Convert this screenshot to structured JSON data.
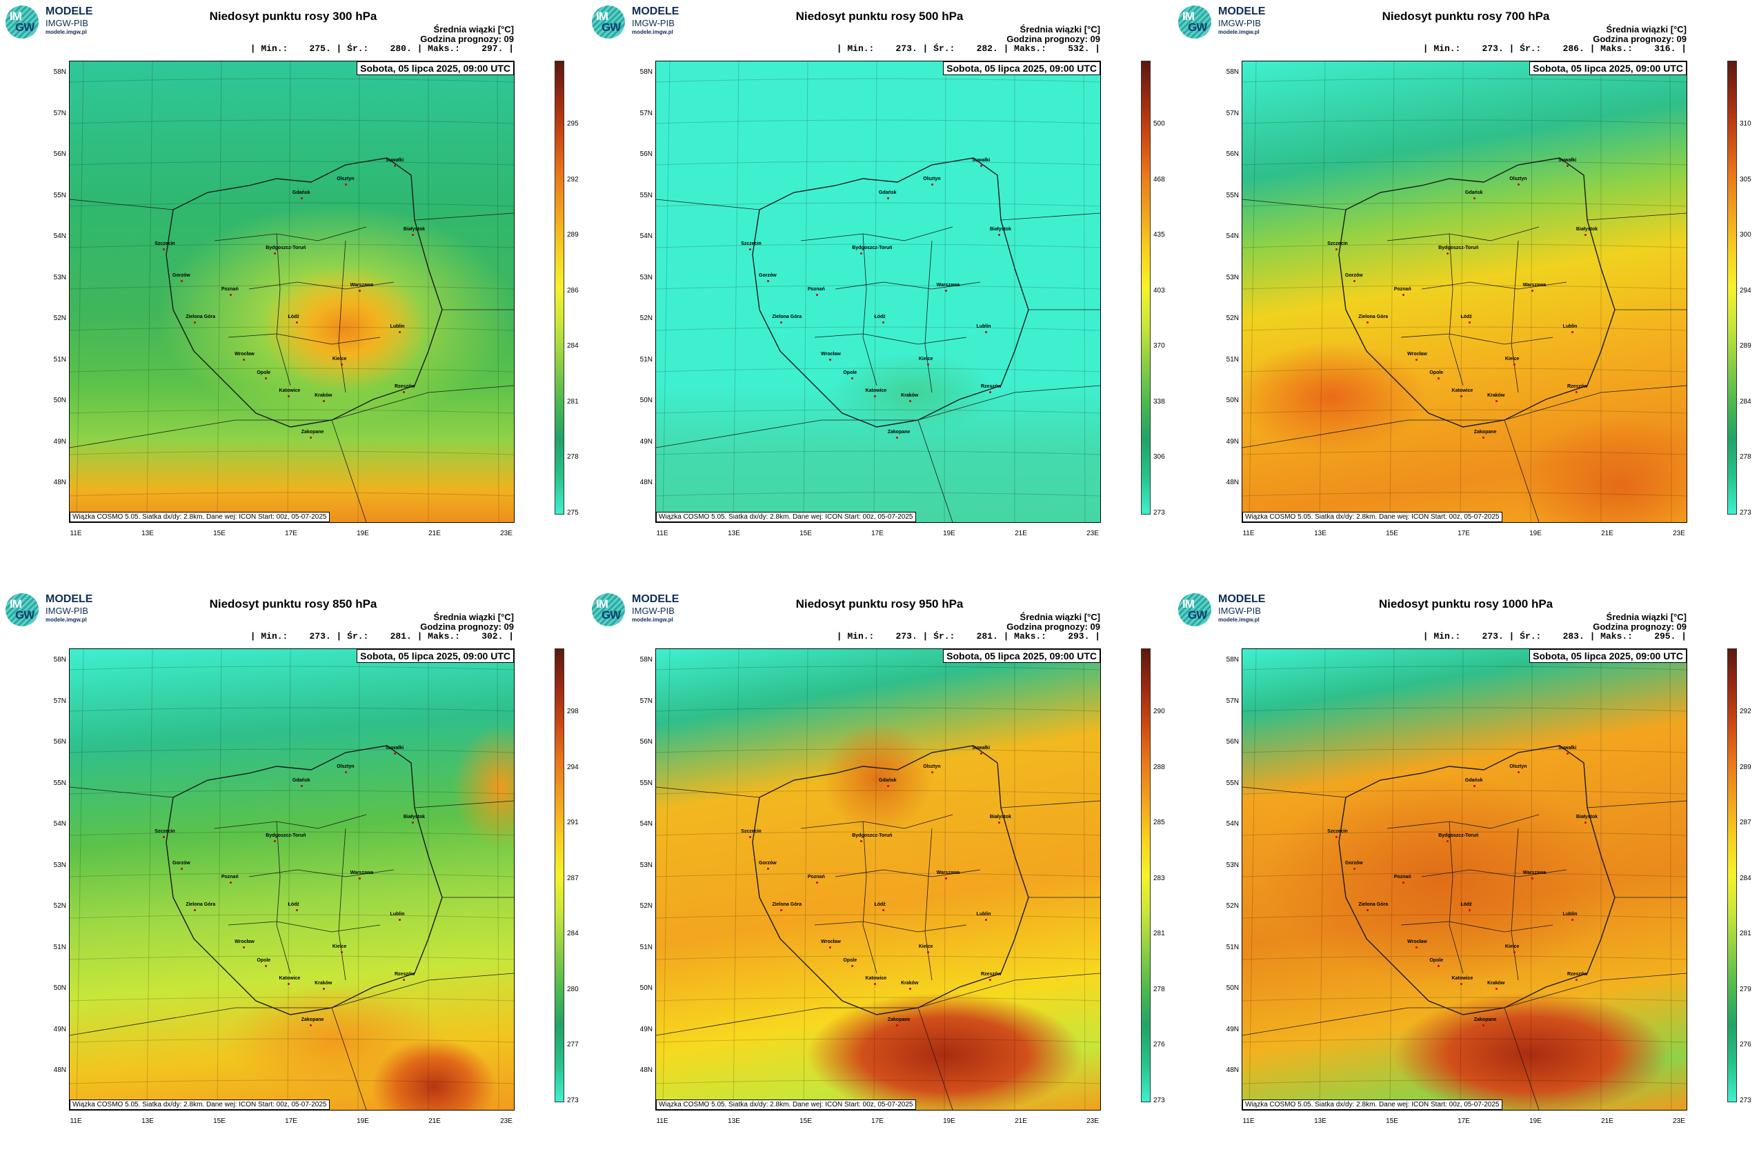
{
  "logo": {
    "brand": "MODELE",
    "sub": "IMGW-PIB",
    "url": "modele.imgw.pl",
    "mark_top": "IM",
    "mark_bottom": "GW"
  },
  "common": {
    "meta_line1": "Średnia wiązki [°C]",
    "meta_line2": "Godzina prognozy: 09",
    "date": "Sobota, 05 lipca 2025, 09:00 UTC",
    "footer": "Wiązka COSMO 5.05. Siatka dx/dy: 2.8km. Dane wej: ICON Start: 00z, 05-07-2025",
    "lat_labels": [
      "58N",
      "57N",
      "56N",
      "55N",
      "54N",
      "53N",
      "52N",
      "51N",
      "50N",
      "49N",
      "48N"
    ],
    "lon_labels": [
      "11E",
      "13E",
      "15E",
      "17E",
      "19E",
      "21E",
      "23E"
    ],
    "cities": [
      "Gdańsk",
      "Olsztyn",
      "Suwałki",
      "Szczecin",
      "Bydgoszcz-Toruń",
      "Białystok",
      "Gorzów",
      "Poznań",
      "Warszawa",
      "Zielona Góra",
      "Łódź",
      "Lublin",
      "Wrocław",
      "Opole",
      "Kielce",
      "Katowice",
      "Kraków",
      "Rzeszów",
      "Zakopane"
    ]
  },
  "panels": [
    {
      "title": "Niedosyt punktu rosy 300 hPa",
      "stats": "| Min.:    275. | Śr.:    280. | Maks.:    297. |",
      "ticks": [
        "295",
        "292",
        "289",
        "286",
        "284",
        "281",
        "278",
        "275"
      ],
      "style": "green"
    },
    {
      "title": "Niedosyt punktu rosy 500 hPa",
      "stats": "| Min.:    273. | Śr.:    282. | Maks.:    532. |",
      "ticks": [
        "500",
        "468",
        "435",
        "403",
        "370",
        "338",
        "306",
        "273"
      ],
      "style": "cyan"
    },
    {
      "title": "Niedosyt punktu rosy 700 hPa",
      "stats": "| Min.:    273. | Śr.:    286. | Maks.:    316. |",
      "ticks": [
        "310",
        "305",
        "300",
        "294",
        "289",
        "284",
        "278",
        "273"
      ],
      "style": "warm"
    },
    {
      "title": "Niedosyt punktu rosy 850 hPa",
      "stats": "| Min.:    273. | Śr.:    281. | Maks.:    302. |",
      "ticks": [
        "298",
        "294",
        "291",
        "287",
        "284",
        "280",
        "277",
        "273"
      ],
      "style": "mixed"
    },
    {
      "title": "Niedosyt punktu rosy 950 hPa",
      "stats": "| Min.:    273. | Śr.:    281. | Maks.:    293. |",
      "ticks": [
        "290",
        "288",
        "285",
        "283",
        "281",
        "278",
        "276",
        "273"
      ],
      "style": "hot"
    },
    {
      "title": "Niedosyt punktu rosy 1000 hPa",
      "stats": "| Min.:    273. | Śr.:    283. | Maks.:    295. |",
      "ticks": [
        "292",
        "289",
        "287",
        "284",
        "281",
        "279",
        "276",
        "273"
      ],
      "style": "hotter"
    }
  ],
  "colors": {
    "colorbar": [
      "#5b1a0f",
      "#9b2a12",
      "#cc4a12",
      "#e9781a",
      "#f2a21e",
      "#f7cf1f",
      "#f6f22a",
      "#c8e63a",
      "#8ccf43",
      "#4fba4f",
      "#21a366",
      "#27c38a",
      "#3ff0cf"
    ],
    "border": "#1a1a1a",
    "city_dot": "#cc0000"
  }
}
